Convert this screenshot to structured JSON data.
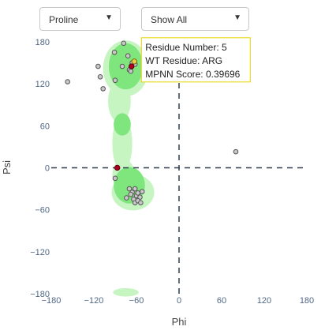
{
  "controls": {
    "residue_dropdown": {
      "value": "Proline",
      "caret": "▼"
    },
    "filter_dropdown": {
      "value": "Show All",
      "caret": "▼"
    }
  },
  "colors": {
    "region_light": "#c6f5c2",
    "region_dark": "#7ee67c",
    "point_fill": "#c8c8c8",
    "point_stroke": "#555555",
    "highlight_point": "#b00020",
    "hover_point": "#e6d24a",
    "tooltip_border": "#e6d200",
    "reference_line": "#2f3e4e"
  },
  "chart_data": {
    "type": "scatter",
    "title": "",
    "xlabel": "Phi",
    "ylabel": "Psi",
    "xlim": [
      -180,
      180
    ],
    "ylim": [
      -180,
      180
    ],
    "x_ticks": [
      -180,
      -120,
      -60,
      0,
      60,
      120,
      180
    ],
    "y_ticks": [
      180,
      120,
      60,
      0,
      -60,
      -120,
      -180
    ],
    "x_tick_labels": [
      "−180",
      "−120",
      "−60",
      "0",
      "60",
      "120",
      "180"
    ],
    "y_tick_labels": [
      "180",
      "120",
      "60",
      "0",
      "−60",
      "−120",
      "−180"
    ],
    "grid": false,
    "reference_lines": {
      "x": 0,
      "y": 0,
      "style": "dashed"
    },
    "regions": {
      "light": [
        {
          "cx": -75,
          "cy": 142,
          "rx": 32,
          "ry": 40
        },
        {
          "cx": -84,
          "cy": 95,
          "rx": 16,
          "ry": 30
        },
        {
          "cx": -80,
          "cy": 35,
          "rx": 14,
          "ry": 40
        },
        {
          "cx": -78,
          "cy": -10,
          "rx": 16,
          "ry": 22
        },
        {
          "cx": -65,
          "cy": -35,
          "rx": 30,
          "ry": 26
        },
        {
          "cx": -75,
          "cy": -178,
          "rx": 18,
          "ry": 6
        }
      ],
      "dark": [
        {
          "cx": -75,
          "cy": 145,
          "rx": 24,
          "ry": 33
        },
        {
          "cx": -80,
          "cy": 62,
          "rx": 12,
          "ry": 16
        },
        {
          "cx": -70,
          "cy": -25,
          "rx": 22,
          "ry": 26
        }
      ]
    },
    "points": [
      {
        "x": -157,
        "y": 123
      },
      {
        "x": -111,
        "y": 130
      },
      {
        "x": -114,
        "y": 145
      },
      {
        "x": -107,
        "y": 113
      },
      {
        "x": -91,
        "y": 165
      },
      {
        "x": -90,
        "y": 125
      },
      {
        "x": -78,
        "y": 178
      },
      {
        "x": -80,
        "y": 145
      },
      {
        "x": -62,
        "y": 148
      },
      {
        "x": -70,
        "y": 140
      },
      {
        "x": -66,
        "y": 150
      },
      {
        "x": -72,
        "y": 160
      },
      {
        "x": -68,
        "y": 138
      },
      {
        "x": 80,
        "y": 23
      },
      {
        "x": -90,
        "y": -15
      },
      {
        "x": -70,
        "y": -30
      },
      {
        "x": -66,
        "y": -35
      },
      {
        "x": -62,
        "y": -30
      },
      {
        "x": -60,
        "y": -40
      },
      {
        "x": -64,
        "y": -45
      },
      {
        "x": -58,
        "y": -36
      },
      {
        "x": -55,
        "y": -42
      },
      {
        "x": -68,
        "y": -38
      },
      {
        "x": -74,
        "y": -43
      },
      {
        "x": -62,
        "y": -50
      },
      {
        "x": -52,
        "y": -34
      },
      {
        "x": -58,
        "y": -47
      },
      {
        "x": -54,
        "y": -50
      }
    ],
    "highlight_points": [
      {
        "x": -67,
        "y": 145
      },
      {
        "x": -87,
        "y": 0
      }
    ],
    "hovered_point": {
      "x": -63,
      "y": 152
    },
    "tooltip": {
      "lines": [
        "Residue Number: 5",
        "WT Residue: ARG",
        "MPNN Score: 0.39696"
      ]
    }
  }
}
